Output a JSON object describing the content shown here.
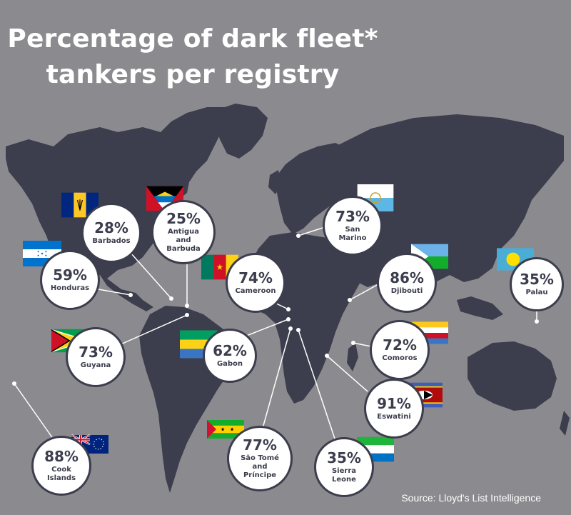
{
  "title": {
    "line1": "Percentage of dark fleet*",
    "line2": "tankers per registry"
  },
  "source": "Source: Lloyd's List Intelligence",
  "colors": {
    "background": "#8b8b8f",
    "land": "#3c3d4d",
    "bubble": "#ffffff",
    "text": "#3c3d4d"
  },
  "chart_data": {
    "type": "bar",
    "title": "Percentage of dark fleet* tankers per registry",
    "unit": "%",
    "categories": [
      "Barbados",
      "Antigua and Barbuda",
      "San Marino",
      "Honduras",
      "Cameroon",
      "Djibouti",
      "Palau",
      "Guyana",
      "Gabon",
      "Comoros",
      "Eswatini",
      "Cook Islands",
      "São Tomé and Príncipe",
      "Sierra Leone"
    ],
    "values": [
      28,
      25,
      73,
      59,
      74,
      86,
      35,
      73,
      62,
      72,
      91,
      88,
      77,
      35
    ]
  },
  "registries": [
    {
      "pct": "28%",
      "name": "Barbados",
      "flag": "barbados-flag-icon"
    },
    {
      "pct": "25%",
      "name": "Antigua\nand\nBarbuda",
      "flag": "antigua-and-barbuda-flag-icon"
    },
    {
      "pct": "73%",
      "name": "San\nMarino",
      "flag": "san-marino-flag-icon"
    },
    {
      "pct": "59%",
      "name": "Honduras",
      "flag": "honduras-flag-icon"
    },
    {
      "pct": "74%",
      "name": "Cameroon",
      "flag": "cameroon-flag-icon"
    },
    {
      "pct": "86%",
      "name": "Djibouti",
      "flag": "djibouti-flag-icon"
    },
    {
      "pct": "35%",
      "name": "Palau",
      "flag": "palau-flag-icon"
    },
    {
      "pct": "73%",
      "name": "Guyana",
      "flag": "guyana-flag-icon"
    },
    {
      "pct": "62%",
      "name": "Gabon",
      "flag": "gabon-flag-icon"
    },
    {
      "pct": "72%",
      "name": "Comoros",
      "flag": "comoros-flag-icon"
    },
    {
      "pct": "91%",
      "name": "Eswatini",
      "flag": "eswatini-flag-icon"
    },
    {
      "pct": "88%",
      "name": "Cook\nIslands",
      "flag": "cook-islands-flag-icon"
    },
    {
      "pct": "77%",
      "name": "São Tomé\nand\nPríncipe",
      "flag": "sao-tome-and-principe-flag-icon"
    },
    {
      "pct": "35%",
      "name": "Sierra\nLeone",
      "flag": "sierra-leone-flag-icon"
    }
  ]
}
